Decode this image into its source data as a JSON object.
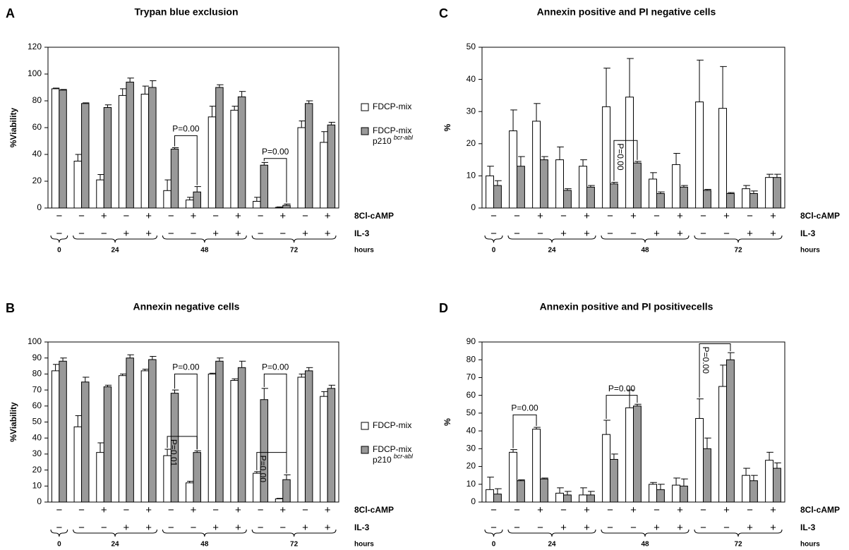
{
  "chart_data": [
    {
      "type": "bar",
      "panel": "A",
      "title": "Trypan blue exclusion",
      "y_label": "%Viability",
      "ylim": [
        0,
        120
      ],
      "yticks": [
        0,
        20,
        40,
        60,
        80,
        100,
        120
      ],
      "legend": true,
      "series": [
        {
          "name": "FDCP-mix",
          "color": "#ffffff",
          "values": [
            89,
            35,
            21,
            84,
            85,
            13,
            6,
            68,
            73,
            5,
            0.5,
            60,
            49
          ],
          "errors": [
            0.5,
            5,
            4,
            5,
            6,
            8,
            2,
            8,
            3,
            3,
            0.3,
            5,
            8
          ]
        },
        {
          "name": "FDCP-mix",
          "name_line2": "p210",
          "name_sup": "bcr-abl",
          "color": "#999999",
          "values": [
            88,
            78,
            75,
            94,
            90,
            44,
            12,
            90,
            83,
            32,
            2,
            78,
            62
          ],
          "errors": [
            0.5,
            0.5,
            2,
            3,
            5,
            1,
            4,
            2,
            4,
            2,
            1,
            2,
            2
          ]
        }
      ],
      "rows": [
        {
          "label": "8Cl-cAMP",
          "signs": [
            "−",
            "−",
            "+",
            "−",
            "+",
            "−",
            "+",
            "−",
            "+",
            "−",
            "+",
            "−",
            "+"
          ]
        },
        {
          "label": "IL-3",
          "signs": [
            "−",
            "−",
            "−",
            "+",
            "+",
            "−",
            "−",
            "+",
            "+",
            "−",
            "−",
            "+",
            "+"
          ]
        }
      ],
      "hour_groups": [
        {
          "label": "0",
          "size": 1
        },
        {
          "label": "24",
          "size": 4
        },
        {
          "label": "48",
          "size": 4
        },
        {
          "label": "72",
          "size": 4
        }
      ],
      "hours_label": "hours",
      "annotations": [
        "P=0.00",
        "P=0.00"
      ]
    },
    {
      "type": "bar",
      "panel": "B",
      "title": "Annexin negative cells",
      "y_label": "%Viability",
      "ylim": [
        0,
        100
      ],
      "yticks": [
        0,
        10,
        20,
        30,
        40,
        50,
        60,
        70,
        80,
        90,
        100
      ],
      "legend": true,
      "series": [
        {
          "name": "FDCP-mix",
          "color": "#ffffff",
          "values": [
            82,
            47,
            31,
            79,
            82,
            29,
            12,
            80,
            76,
            18,
            2,
            78,
            66
          ],
          "errors": [
            4,
            7,
            6,
            1,
            1,
            4,
            1,
            0.5,
            1,
            1,
            0.3,
            2,
            3
          ]
        },
        {
          "name": "FDCP-mix",
          "name_line2": "p210",
          "name_sup": "bcr-abl",
          "color": "#999999",
          "values": [
            88,
            75,
            72,
            90,
            89,
            68,
            31,
            88,
            84,
            64,
            14,
            82,
            71
          ],
          "errors": [
            2,
            3,
            1,
            2,
            2,
            2,
            1,
            2,
            4,
            7,
            3,
            2,
            2
          ]
        }
      ],
      "rows": [
        {
          "label": "8Cl-cAMP",
          "signs": [
            "−",
            "−",
            "+",
            "−",
            "+",
            "−",
            "+",
            "−",
            "+",
            "−",
            "+",
            "−",
            "+"
          ]
        },
        {
          "label": "IL-3",
          "signs": [
            "−",
            "−",
            "−",
            "+",
            "+",
            "−",
            "−",
            "+",
            "+",
            "−",
            "−",
            "+",
            "+"
          ]
        }
      ],
      "hour_groups": [
        {
          "label": "0",
          "size": 1
        },
        {
          "label": "24",
          "size": 4
        },
        {
          "label": "48",
          "size": 4
        },
        {
          "label": "72",
          "size": 4
        }
      ],
      "hours_label": "hours",
      "annotations": [
        "P=0.00",
        "P=0.01",
        "P=0.00",
        "P=0.00"
      ]
    },
    {
      "type": "bar",
      "panel": "C",
      "title": "Annexin positive and PI negative cells",
      "y_label": "%",
      "ylim": [
        0,
        50
      ],
      "yticks": [
        0,
        10,
        20,
        30,
        40,
        50
      ],
      "legend": false,
      "series": [
        {
          "name": "FDCP-mix",
          "color": "#ffffff",
          "values": [
            10,
            24,
            27,
            15,
            13,
            31.5,
            34.5,
            9,
            13.5,
            33,
            31,
            6,
            9.5
          ],
          "errors": [
            3,
            6.5,
            5.5,
            4,
            2,
            12,
            12,
            2,
            3.5,
            13,
            13,
            1,
            1
          ]
        },
        {
          "name": "FDCP-mix",
          "name_line2": "p210",
          "name_sup": "bcr-abl",
          "color": "#999999",
          "values": [
            7,
            13,
            15,
            5.5,
            6.5,
            7.5,
            14,
            4.5,
            6.5,
            5.5,
            4.5,
            4.5,
            9.5
          ],
          "errors": [
            1.5,
            3,
            1,
            0.5,
            0.5,
            0.5,
            0.5,
            0.5,
            0.5,
            0.3,
            0.3,
            0.8,
            1
          ]
        }
      ],
      "rows": [
        {
          "label": "8Cl-cAMP",
          "signs": [
            "−",
            "−",
            "+",
            "−",
            "+",
            "−",
            "+",
            "−",
            "+",
            "−",
            "+",
            "−",
            "+"
          ]
        },
        {
          "label": "IL-3",
          "signs": [
            "−",
            "−",
            "−",
            "+",
            "+",
            "−",
            "−",
            "+",
            "+",
            "−",
            "−",
            "+",
            "+"
          ]
        }
      ],
      "hour_groups": [
        {
          "label": "0",
          "size": 1
        },
        {
          "label": "24",
          "size": 4
        },
        {
          "label": "48",
          "size": 4
        },
        {
          "label": "72",
          "size": 4
        }
      ],
      "hours_label": "hours",
      "annotations": [
        "P=0.00"
      ]
    },
    {
      "type": "bar",
      "panel": "D",
      "title": "Annexin positive and PI positivecells",
      "y_label": "%",
      "ylim": [
        0,
        90
      ],
      "yticks": [
        0,
        10,
        20,
        30,
        40,
        50,
        60,
        70,
        80,
        90
      ],
      "legend": false,
      "series": [
        {
          "name": "FDCP-mix",
          "color": "#ffffff",
          "values": [
            7,
            28,
            41,
            5,
            4,
            38,
            53,
            10,
            9.5,
            47,
            65,
            15,
            23.5
          ],
          "errors": [
            7,
            1.5,
            1,
            3,
            4,
            8,
            10,
            1,
            4,
            11,
            12,
            4,
            4.5
          ]
        },
        {
          "name": "FDCP-mix",
          "name_line2": "p210",
          "name_sup": "bcr-abl",
          "color": "#999999",
          "values": [
            4.5,
            12,
            13,
            4,
            4,
            24,
            54,
            7,
            9,
            30,
            80,
            12,
            19
          ],
          "errors": [
            3,
            0.5,
            0.5,
            2,
            2,
            3,
            1,
            3,
            4,
            6,
            4,
            3,
            3
          ]
        }
      ],
      "rows": [
        {
          "label": "8Cl-cAMP",
          "signs": [
            "−",
            "−",
            "+",
            "−",
            "+",
            "−",
            "+",
            "−",
            "+",
            "−",
            "+",
            "−",
            "+"
          ]
        },
        {
          "label": "IL-3",
          "signs": [
            "−",
            "−",
            "−",
            "+",
            "+",
            "−",
            "−",
            "+",
            "+",
            "−",
            "−",
            "+",
            "+"
          ]
        }
      ],
      "hour_groups": [
        {
          "label": "0",
          "size": 1
        },
        {
          "label": "24",
          "size": 4
        },
        {
          "label": "48",
          "size": 4
        },
        {
          "label": "72",
          "size": 4
        }
      ],
      "hours_label": "hours",
      "annotations": [
        "P=0.00",
        "P=0.00",
        "P=0.00"
      ]
    }
  ]
}
